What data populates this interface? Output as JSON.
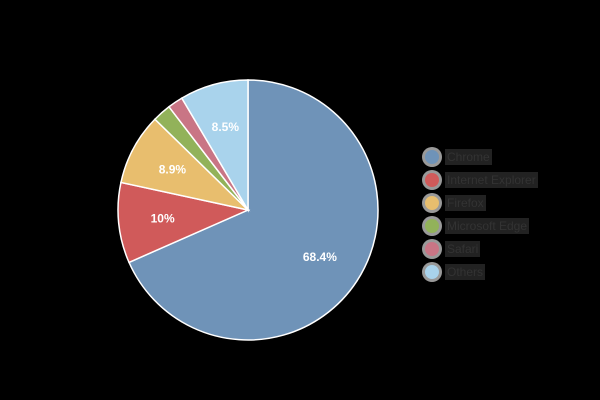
{
  "chart_data": {
    "type": "pie",
    "title": "",
    "start_angle_deg": 0,
    "direction": "clockwise",
    "legend_position": "right",
    "slices": [
      {
        "label": "Chrome",
        "value": 68.4,
        "display": "68.4%",
        "color": "#6F93B8"
      },
      {
        "label": "Internet Explorer",
        "value": 10.0,
        "display": "10%",
        "color": "#D05A5A"
      },
      {
        "label": "Firefox",
        "value": 8.9,
        "display": "8.9%",
        "color": "#E8BE6E"
      },
      {
        "label": "Microsoft Edge",
        "value": 2.3,
        "display": "",
        "color": "#92B25A"
      },
      {
        "label": "Safari",
        "value": 1.9,
        "display": "",
        "color": "#C97585"
      },
      {
        "label": "Others",
        "value": 8.5,
        "display": "8.5%",
        "color": "#A9D3EC"
      }
    ]
  }
}
